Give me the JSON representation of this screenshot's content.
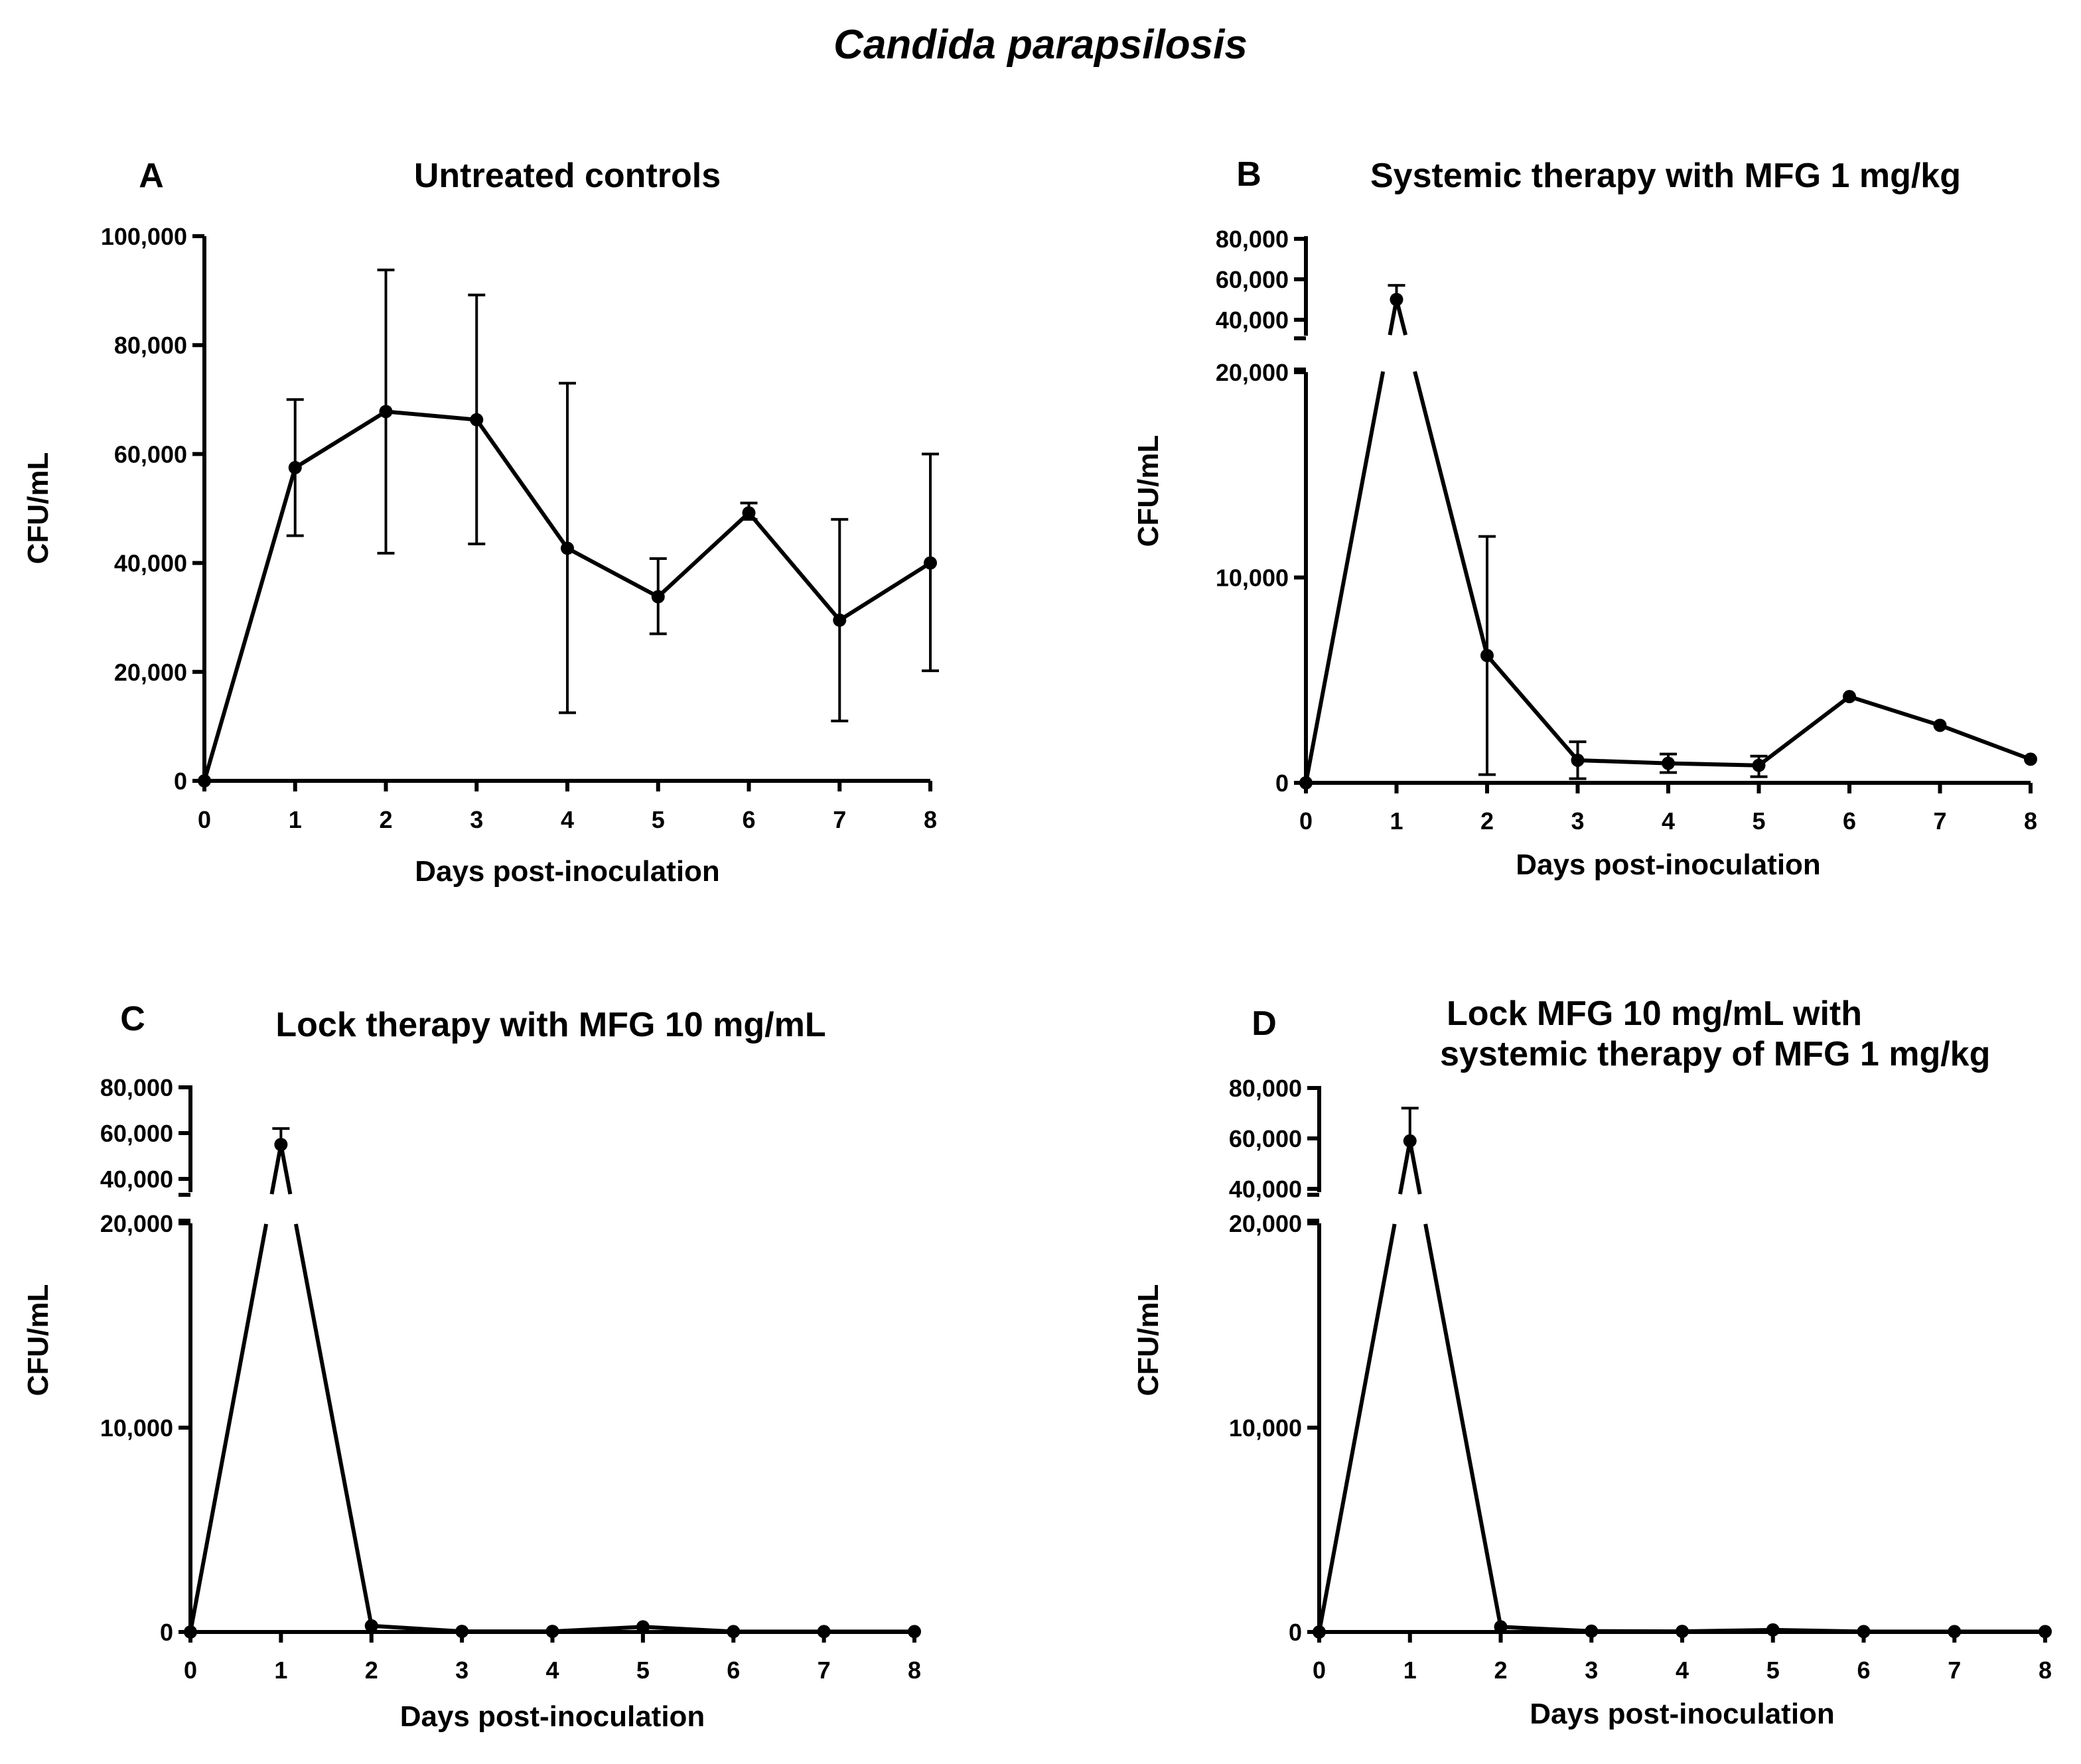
{
  "figure_title": "Candida parapsilosis",
  "chart_data": [
    {
      "panel": "A",
      "type": "line",
      "title": "Untreated controls",
      "xlabel": "Days post-inoculation",
      "ylabel": "CFU/mL",
      "x": [
        0,
        1,
        2,
        3,
        4,
        5,
        6,
        7,
        8
      ],
      "values": [
        0,
        57500,
        67800,
        66300,
        42700,
        33800,
        49200,
        29500,
        40000
      ],
      "err_upper": [
        null,
        70000,
        93800,
        89200,
        73000,
        40800,
        51000,
        48000,
        60000
      ],
      "err_lower": [
        null,
        45000,
        41800,
        43500,
        12500,
        27000,
        48000,
        11000,
        20200
      ],
      "ylim": [
        0,
        100000
      ],
      "xticks": [
        "0",
        "1",
        "2",
        "3",
        "4",
        "5",
        "6",
        "7",
        "8"
      ],
      "yticks": [
        "0",
        "20,000",
        "40,000",
        "60,000",
        "80,000",
        "100,000"
      ],
      "y_break": false
    },
    {
      "panel": "B",
      "type": "line",
      "title": "Systemic therapy with MFG 1 mg/kg",
      "xlabel": "Days post-inoculation",
      "ylabel": "CFU/mL",
      "x": [
        0,
        1,
        2,
        3,
        4,
        5,
        6,
        7,
        8
      ],
      "values": [
        0,
        50000,
        6200,
        1100,
        950,
        850,
        4200,
        2800,
        1150
      ],
      "err_upper": [
        null,
        57000,
        12000,
        2000,
        1400,
        1300,
        null,
        null,
        null
      ],
      "err_lower": [
        null,
        null,
        400,
        200,
        500,
        300,
        null,
        null,
        null
      ],
      "ylim_lower": [
        0,
        20000
      ],
      "ylim_upper": [
        35000,
        80000
      ],
      "xticks": [
        "0",
        "1",
        "2",
        "3",
        "4",
        "5",
        "6",
        "7",
        "8"
      ],
      "yticks_lower": [
        "0",
        "10,000",
        "20,000"
      ],
      "yticks_upper": [
        "40,000",
        "60,000",
        "80,000"
      ],
      "y_break": true
    },
    {
      "panel": "C",
      "type": "line",
      "title": "Lock therapy with MFG 10 mg/mL",
      "xlabel": "Days post-inoculation",
      "ylabel": "CFU/mL",
      "x": [
        0,
        1,
        2,
        3,
        4,
        5,
        6,
        7,
        8
      ],
      "values": [
        0,
        55000,
        300,
        30,
        30,
        250,
        20,
        20,
        20
      ],
      "err_upper": [
        null,
        62000,
        null,
        null,
        null,
        null,
        null,
        null,
        null
      ],
      "err_lower": [
        null,
        null,
        null,
        null,
        null,
        null,
        null,
        null,
        null
      ],
      "ylim_lower": [
        0,
        20000
      ],
      "ylim_upper": [
        35000,
        80000
      ],
      "xticks": [
        "0",
        "1",
        "2",
        "3",
        "4",
        "5",
        "6",
        "7",
        "8"
      ],
      "yticks_lower": [
        "0",
        "10,000",
        "20,000"
      ],
      "yticks_upper": [
        "40,000",
        "60,000",
        "80,000"
      ],
      "y_break": true
    },
    {
      "panel": "D",
      "type": "line",
      "title": "Lock MFG 10 mg/mL with",
      "title_line2": "systemic therapy of MFG 1 mg/kg",
      "xlabel": "Days post-inoculation",
      "ylabel": "CFU/mL",
      "x": [
        0,
        1,
        2,
        3,
        4,
        5,
        6,
        7,
        8
      ],
      "values": [
        0,
        59000,
        250,
        40,
        30,
        100,
        20,
        20,
        20
      ],
      "err_upper": [
        null,
        72000,
        null,
        null,
        null,
        null,
        null,
        null,
        null
      ],
      "err_lower": [
        null,
        null,
        null,
        null,
        null,
        null,
        null,
        null,
        null
      ],
      "ylim_lower": [
        0,
        20000
      ],
      "ylim_upper": [
        35000,
        80000
      ],
      "xticks": [
        "0",
        "1",
        "2",
        "3",
        "4",
        "5",
        "6",
        "7",
        "8"
      ],
      "yticks_lower": [
        "0",
        "10,000",
        "20,000"
      ],
      "yticks_upper": [
        "40,000",
        "60,000",
        "80,000"
      ],
      "y_break": true
    }
  ]
}
